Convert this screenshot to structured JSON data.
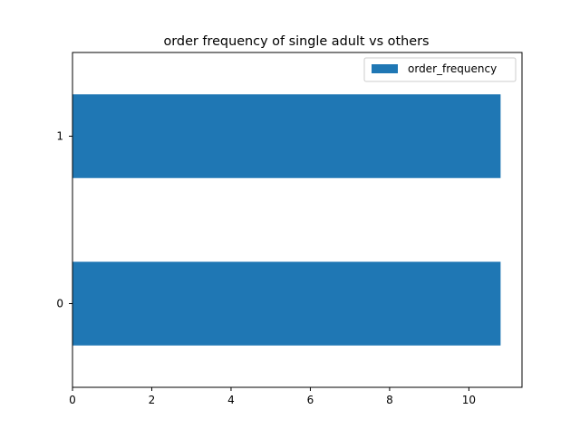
{
  "chart_data": {
    "type": "bar",
    "orientation": "horizontal",
    "title": "order frequency of single adult vs others",
    "xlabel": "",
    "ylabel": "",
    "categories": [
      "0",
      "1"
    ],
    "series": [
      {
        "name": "order_frequency",
        "values": [
          10.8,
          10.8
        ],
        "color": "#1f77b4"
      }
    ],
    "xlim": [
      0,
      11.34
    ],
    "xticks": [
      0,
      2,
      4,
      6,
      8,
      10
    ],
    "grid": false,
    "legend_position": "top-right"
  }
}
